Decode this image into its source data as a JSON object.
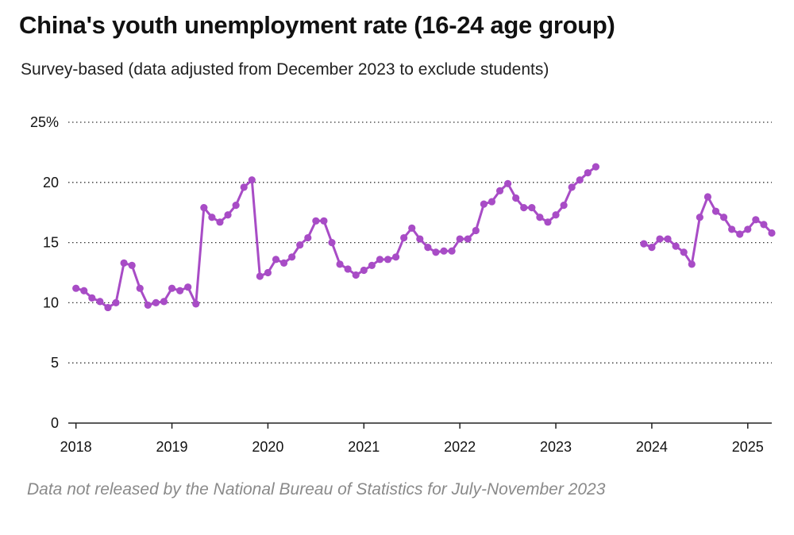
{
  "title": "China's youth unemployment rate (16-24 age group)",
  "subtitle": "Survey-based (data adjusted from December 2023 to exclude students)",
  "note": "Data not released by the National Bureau of Statistics for July-November 2023",
  "colors": {
    "line": "#a84cc6",
    "grid": "#333333",
    "axis": "#222222"
  },
  "chart_data": {
    "type": "line",
    "title": "China's youth unemployment rate (16-24 age group)",
    "ylabel": "",
    "xlabel": "",
    "ylim": [
      0,
      25
    ],
    "xlim": [
      2017.92,
      2025.25
    ],
    "grid": true,
    "y_ticks": [
      {
        "value": 0,
        "label": "0"
      },
      {
        "value": 5,
        "label": "5"
      },
      {
        "value": 10,
        "label": "10"
      },
      {
        "value": 15,
        "label": "15"
      },
      {
        "value": 20,
        "label": "20"
      },
      {
        "value": 25,
        "label": "25%"
      }
    ],
    "x_ticks": [
      {
        "value": 2018,
        "label": "2018"
      },
      {
        "value": 2019,
        "label": "2019"
      },
      {
        "value": 2020,
        "label": "2020"
      },
      {
        "value": 2021,
        "label": "2021"
      },
      {
        "value": 2022,
        "label": "2022"
      },
      {
        "value": 2023,
        "label": "2023"
      },
      {
        "value": 2024,
        "label": "2024"
      },
      {
        "value": 2025,
        "label": "2025"
      }
    ],
    "series": [
      {
        "name": "2018-01 to 2023-06",
        "start": "2018-01",
        "values": [
          11.2,
          11.0,
          10.4,
          10.1,
          9.6,
          10.0,
          13.3,
          13.1,
          11.2,
          9.8,
          10.0,
          10.1,
          11.2,
          11.0,
          11.3,
          9.9,
          17.9,
          17.1,
          16.7,
          17.3,
          18.1,
          19.6,
          20.2,
          12.2,
          12.5,
          13.6,
          13.3,
          13.8,
          14.8,
          15.4,
          16.8,
          16.8,
          15.0,
          13.2,
          12.8,
          12.3,
          12.7,
          13.1,
          13.6,
          13.6,
          13.8,
          15.4,
          16.2,
          15.3,
          14.6,
          14.2,
          14.3,
          14.3,
          15.3,
          15.3,
          16.0,
          18.2,
          18.4,
          19.3,
          19.9,
          18.7,
          17.9,
          17.9,
          17.1,
          16.7,
          17.3,
          18.1,
          19.6,
          20.2,
          20.8,
          21.3
        ]
      },
      {
        "name": "2023-12 to 2025-03",
        "start": "2023-12",
        "values": [
          14.9,
          14.6,
          15.3,
          15.3,
          14.7,
          14.2,
          13.2,
          17.1,
          18.8,
          17.6,
          17.1,
          16.1,
          15.7,
          16.1,
          16.9,
          16.5,
          15.8
        ]
      }
    ]
  }
}
